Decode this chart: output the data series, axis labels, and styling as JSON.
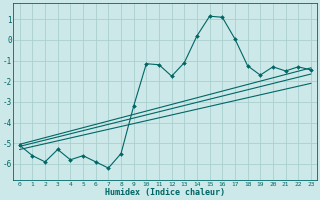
{
  "xlabel": "Humidex (Indice chaleur)",
  "bg_color": "#cce8e8",
  "grid_color": "#aacfcf",
  "line_color": "#006666",
  "xlim": [
    -0.5,
    23.5
  ],
  "ylim": [
    -6.8,
    1.8
  ],
  "xticks": [
    0,
    1,
    2,
    3,
    4,
    5,
    6,
    7,
    8,
    9,
    10,
    11,
    12,
    13,
    14,
    15,
    16,
    17,
    18,
    19,
    20,
    21,
    22,
    23
  ],
  "yticks": [
    -6,
    -5,
    -4,
    -3,
    -2,
    -1,
    0,
    1
  ],
  "zigzag_x": [
    0,
    1,
    2,
    3,
    4,
    5,
    6,
    7,
    8,
    9,
    10,
    11,
    12,
    13,
    14,
    15,
    16,
    17,
    18,
    19,
    20,
    21,
    22,
    23
  ],
  "zigzag_y": [
    -5.1,
    -5.6,
    -5.9,
    -5.3,
    -5.8,
    -5.6,
    -5.9,
    -6.2,
    -5.5,
    -3.2,
    -1.15,
    -1.2,
    -1.75,
    -1.1,
    0.2,
    1.15,
    1.1,
    0.05,
    -1.25,
    -1.7,
    -1.3,
    -1.5,
    -1.3,
    -1.45
  ],
  "line1_x": [
    0,
    23
  ],
  "line1_y": [
    -5.05,
    -1.35
  ],
  "line2_x": [
    0,
    23
  ],
  "line2_y": [
    -5.15,
    -1.65
  ],
  "line3_x": [
    0,
    23
  ],
  "line3_y": [
    -5.3,
    -2.1
  ]
}
